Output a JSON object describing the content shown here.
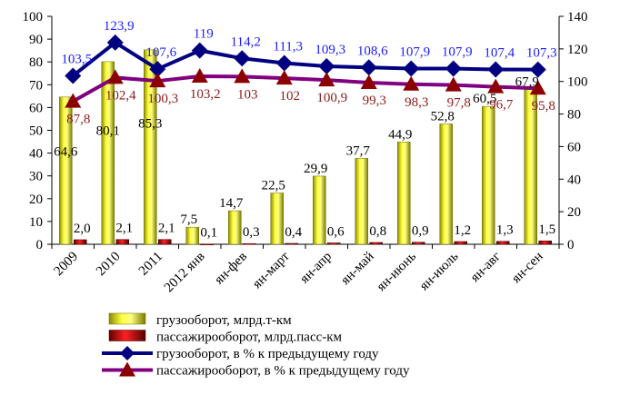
{
  "chart_data": {
    "type": "bar",
    "categories": [
      "2009",
      "2010",
      "2011",
      "2012 янв",
      "ян-фев",
      "ян-март",
      "ян-апр",
      "ян-май",
      "ян-июнь",
      "ян-июль",
      "ян-авг",
      "ян-сен"
    ],
    "left_axis": {
      "ylim": [
        0,
        100
      ],
      "ticks": [
        "0",
        "10",
        "20",
        "30",
        "40",
        "50",
        "60",
        "70",
        "80",
        "90",
        "100"
      ]
    },
    "right_axis": {
      "ylim": [
        0,
        140
      ],
      "ticks": [
        "0",
        "20",
        "40",
        "60",
        "80",
        "100",
        "120",
        "140"
      ]
    },
    "grid": false,
    "legend_position": "bottom",
    "series": [
      {
        "name": "грузооборот, млрд.т-км",
        "kind": "bar",
        "axis": "left",
        "color": "#e8e800",
        "values": [
          64.6,
          80.1,
          85.3,
          7.5,
          14.7,
          22.5,
          29.9,
          37.7,
          44.9,
          52.8,
          60.5,
          67.9
        ],
        "labels": [
          "64,6",
          "80,1",
          "85,3",
          "7,5",
          "14,7",
          "22,5",
          "29,9",
          "37,7",
          "44,9",
          "52,8",
          "60,5",
          "67,9"
        ],
        "label_color": "#000000"
      },
      {
        "name": "пассажирооборот, млрд.пасс-км",
        "kind": "bar",
        "axis": "left",
        "color": "#cc0000",
        "values": [
          2.0,
          2.1,
          2.1,
          0.1,
          0.3,
          0.4,
          0.6,
          0.8,
          0.9,
          1.2,
          1.3,
          1.5
        ],
        "labels": [
          "2,0",
          "2,1",
          "2,1",
          "0,1",
          "0,3",
          "0,4",
          "0,6",
          "0,8",
          "0,9",
          "1,2",
          "1,3",
          "1,5"
        ],
        "label_color": "#000000"
      },
      {
        "name": "грузооборот, в % к предыдущему году",
        "kind": "line",
        "axis": "right",
        "color": "#000080",
        "marker": "diamond",
        "values": [
          103.5,
          123.9,
          107.6,
          119,
          114.2,
          111.3,
          109.3,
          108.6,
          107.9,
          107.9,
          107.4,
          107.3
        ],
        "labels": [
          "103,5",
          "123,9",
          "107,6",
          "119",
          "114,2",
          "111,3",
          "109,3",
          "108,6",
          "107,9",
          "107,9",
          "107,4",
          "107,3"
        ],
        "label_color": "#1a1aff"
      },
      {
        "name": "пассажирооборот, в % к предыдущему году",
        "kind": "line",
        "axis": "right",
        "color": "#800080",
        "marker": "triangle",
        "values": [
          87.8,
          102.4,
          100.3,
          103.2,
          103,
          102,
          100.9,
          99.3,
          98.3,
          97.8,
          96.7,
          95.8
        ],
        "labels": [
          "87,8",
          "102,4",
          "100,3",
          "103,2",
          "103",
          "102",
          "100,9",
          "99,3",
          "98,3",
          "97,8",
          "96,7",
          "95,8"
        ],
        "label_color": "#8b1a1a"
      }
    ]
  }
}
